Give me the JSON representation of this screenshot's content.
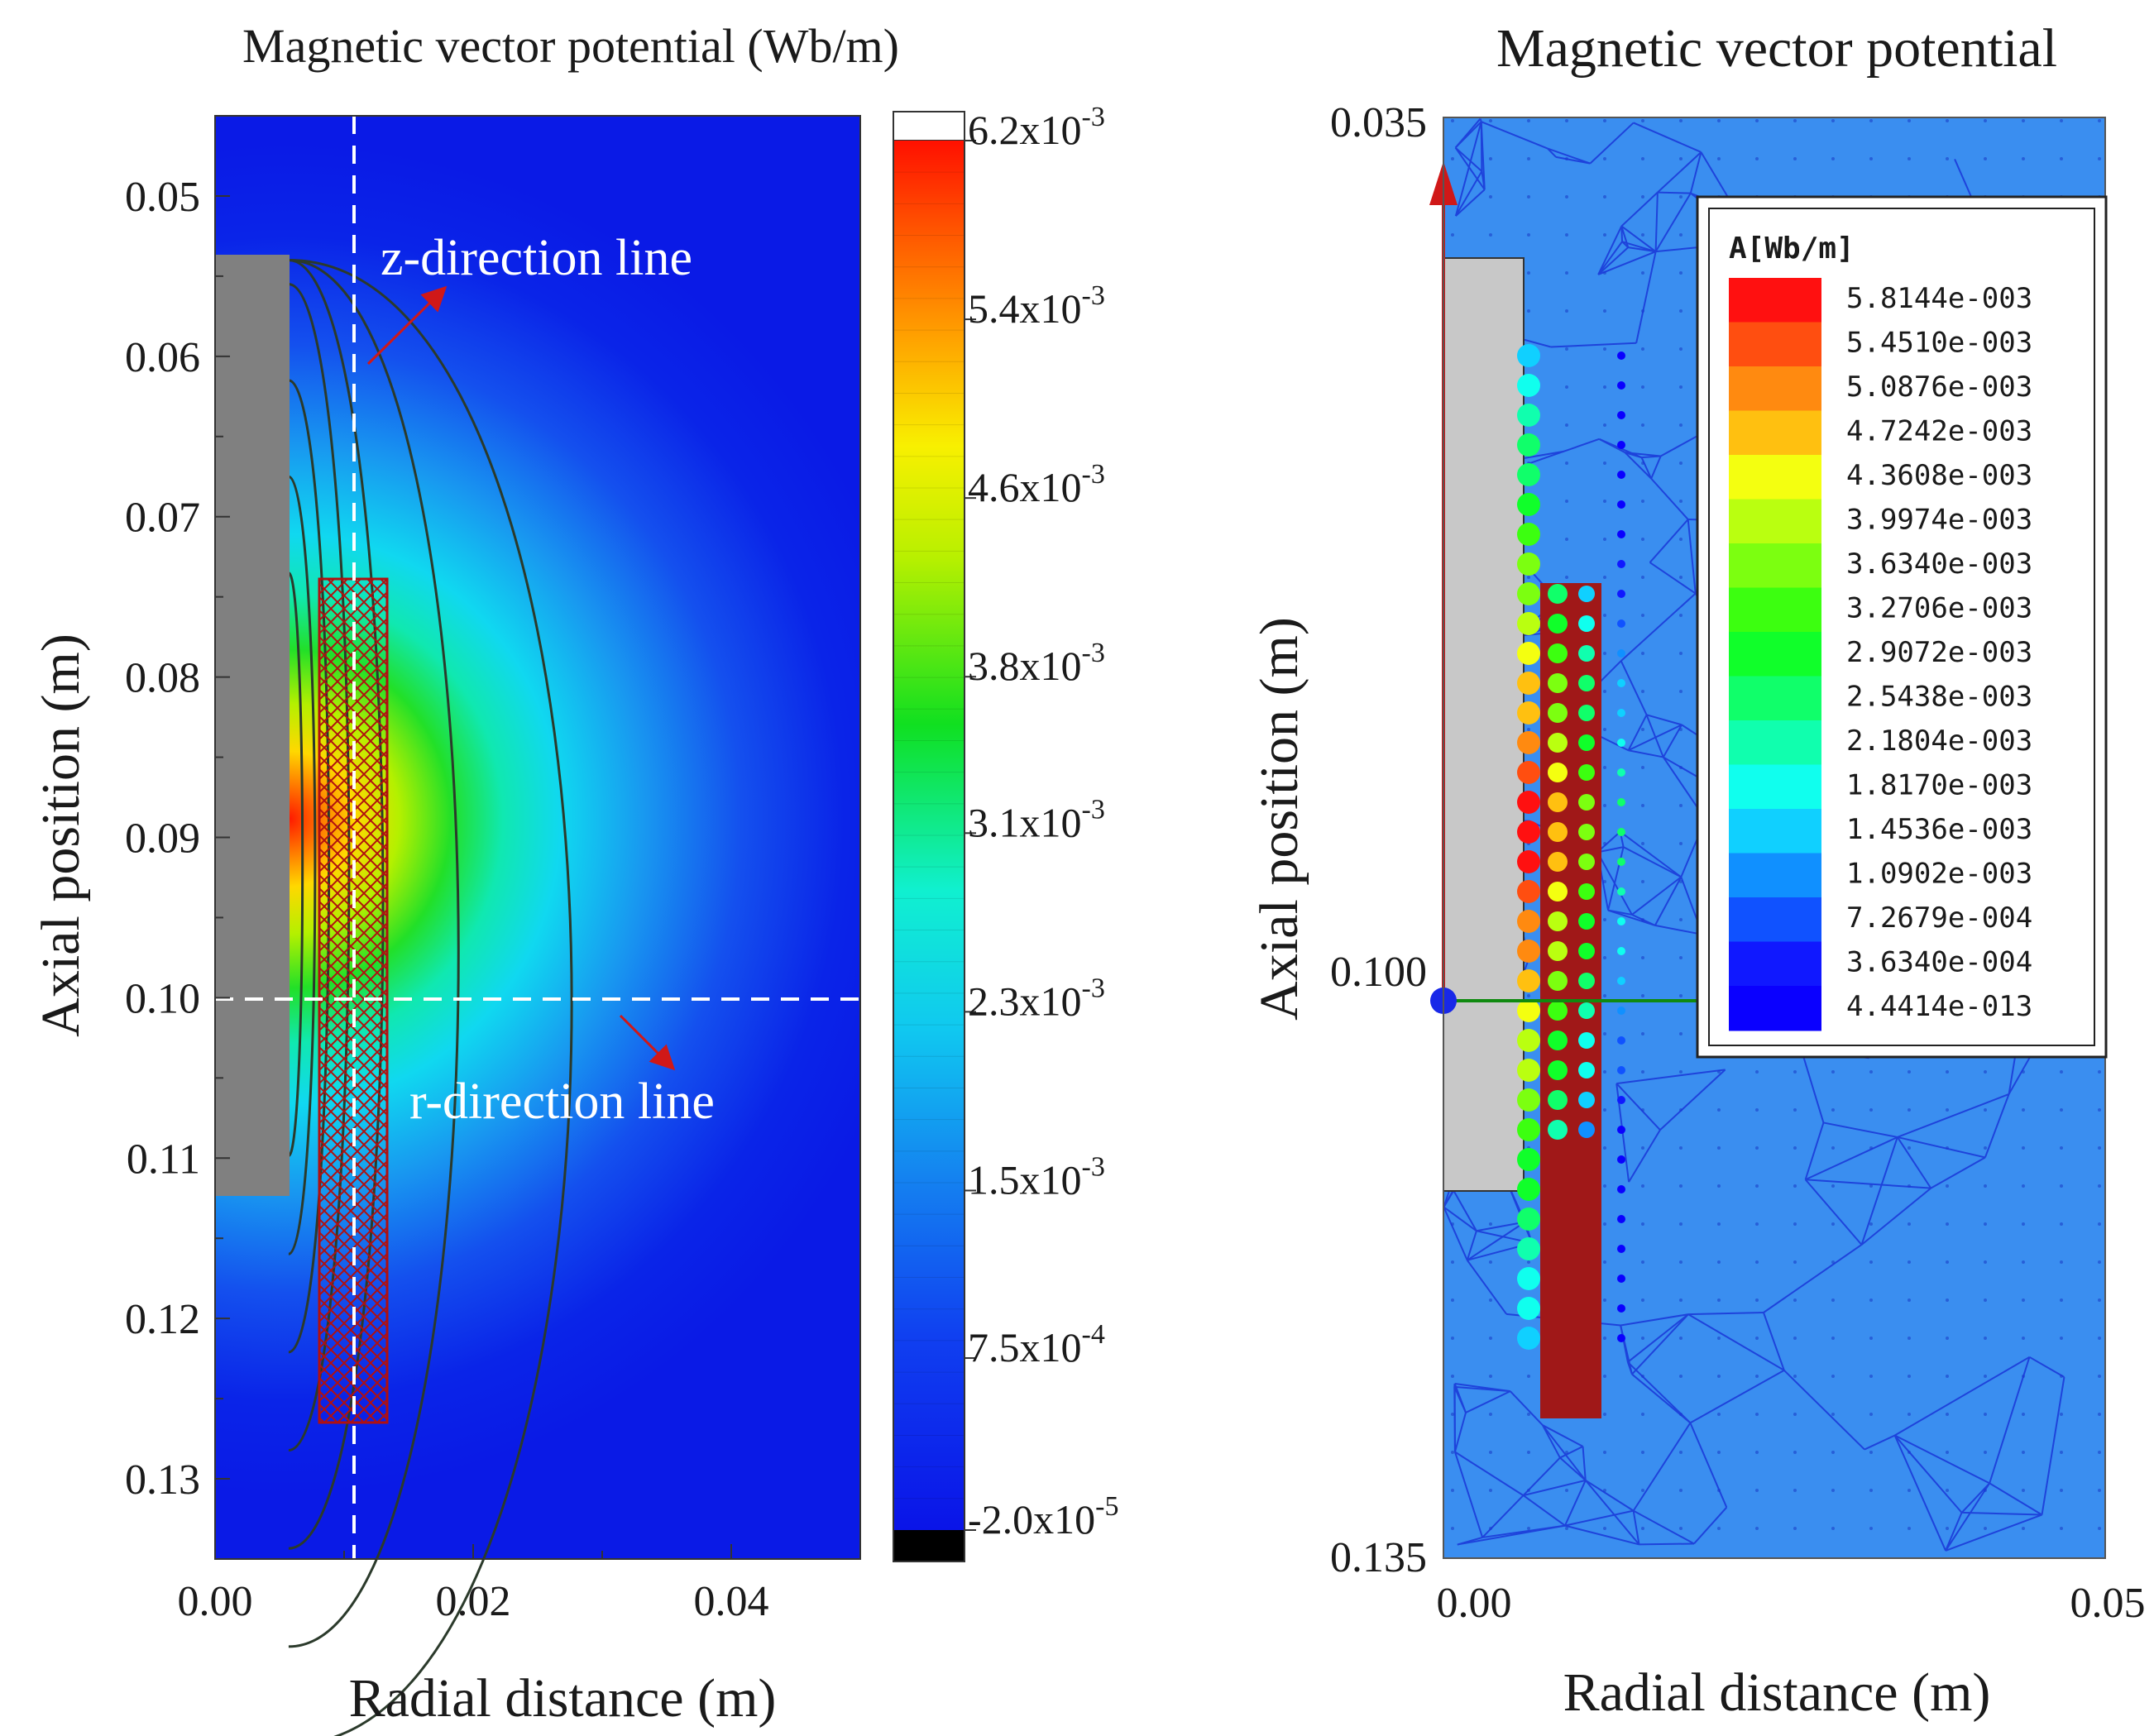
{
  "chart_data": [
    {
      "type": "heatmap",
      "title": "Magnetic vector potential (Wb/m)",
      "xlabel": "Radial distance (m)",
      "ylabel": "Axial position (m)",
      "xlim": [
        0,
        0.05
      ],
      "ylim": [
        0.135,
        0.045
      ],
      "x_ticks": [
        0,
        0.02,
        0.04
      ],
      "x_tick_labels": [
        "0.00",
        "0.02",
        "0.04"
      ],
      "y_ticks": [
        0.05,
        0.06,
        0.07,
        0.08,
        0.09,
        0.1,
        0.11,
        0.12,
        0.13
      ],
      "y_tick_labels": [
        "0.05",
        "0.06",
        "0.07",
        "0.08",
        "0.09",
        "0.10",
        "0.11",
        "0.12",
        "0.13"
      ],
      "colorbar": {
        "min": -2e-05,
        "max": 0.0062,
        "ticks": [
          0.0062,
          0.0054,
          0.0046,
          0.0038,
          0.0031,
          0.0023,
          0.0015,
          0.00075,
          -2e-05
        ],
        "labels": [
          {
            "mant": "6.2x10",
            "exp": "-3"
          },
          {
            "mant": "5.4x10",
            "exp": "-3"
          },
          {
            "mant": "4.6x10",
            "exp": "-3"
          },
          {
            "mant": "3.8x10",
            "exp": "-3"
          },
          {
            "mant": "3.1x10",
            "exp": "-3"
          },
          {
            "mant": "2.3x10",
            "exp": "-3"
          },
          {
            "mant": "1.5x10",
            "exp": "-3"
          },
          {
            "mant": "7.5x10",
            "exp": "-4"
          },
          {
            "mant": "-2.0x10",
            "exp": "-5"
          }
        ]
      },
      "guide_lines": {
        "z_line_r": 0.0108,
        "r_line_z": 0.1
      },
      "annotations": [
        "z-direction line",
        "r-direction line"
      ],
      "core": {
        "r": [
          0,
          0.0057
        ],
        "z": [
          0.054,
          0.1125
        ]
      },
      "coil": {
        "r": [
          0.0081,
          0.0132
        ],
        "z": [
          0.074,
          0.1265
        ]
      },
      "contour_levels": [
        0.0054,
        0.0046,
        0.0038,
        0.0031,
        0.0023,
        0.0015,
        0.00075
      ]
    },
    {
      "type": "heatmap",
      "title": "Magnetic vector potential",
      "xlabel": "Radial distance (m)",
      "ylabel": "Axial position (m)",
      "xlim": [
        0,
        0.05
      ],
      "ylim": [
        0.135,
        0.035
      ],
      "x_tick_labels": [
        "0.00",
        "0.05"
      ],
      "y_tick_labels": [
        "0.035",
        "0.100",
        "0.135"
      ],
      "legend_title": "A[Wb/m]",
      "legend_entries": [
        "5.8144e-003",
        "5.4510e-003",
        "5.0876e-003",
        "4.7242e-003",
        "4.3608e-003",
        "3.9974e-003",
        "3.6340e-003",
        "3.2706e-003",
        "2.9072e-003",
        "2.5438e-003",
        "2.1804e-003",
        "1.8170e-003",
        "1.4536e-003",
        "1.0902e-003",
        "7.2679e-004",
        "3.6340e-004",
        "4.4414e-013"
      ],
      "legend_colors": [
        "#ff1010",
        "#ff4e10",
        "#ff8a10",
        "#ffc010",
        "#f4ff10",
        "#baff10",
        "#7cff10",
        "#3cff10",
        "#10ff2a",
        "#10ff6a",
        "#10ffae",
        "#10ffee",
        "#10d0ff",
        "#1090ff",
        "#1052ff",
        "#1018ff",
        "#0a00ff"
      ]
    }
  ],
  "colors": {
    "background_field": "#0a1fe8",
    "mesh_background": "#3a8ef0",
    "core_gray": "#808080",
    "core_light": "#c8c8c8",
    "coil_red": "#c01010",
    "arrow_red": "#d01818"
  }
}
